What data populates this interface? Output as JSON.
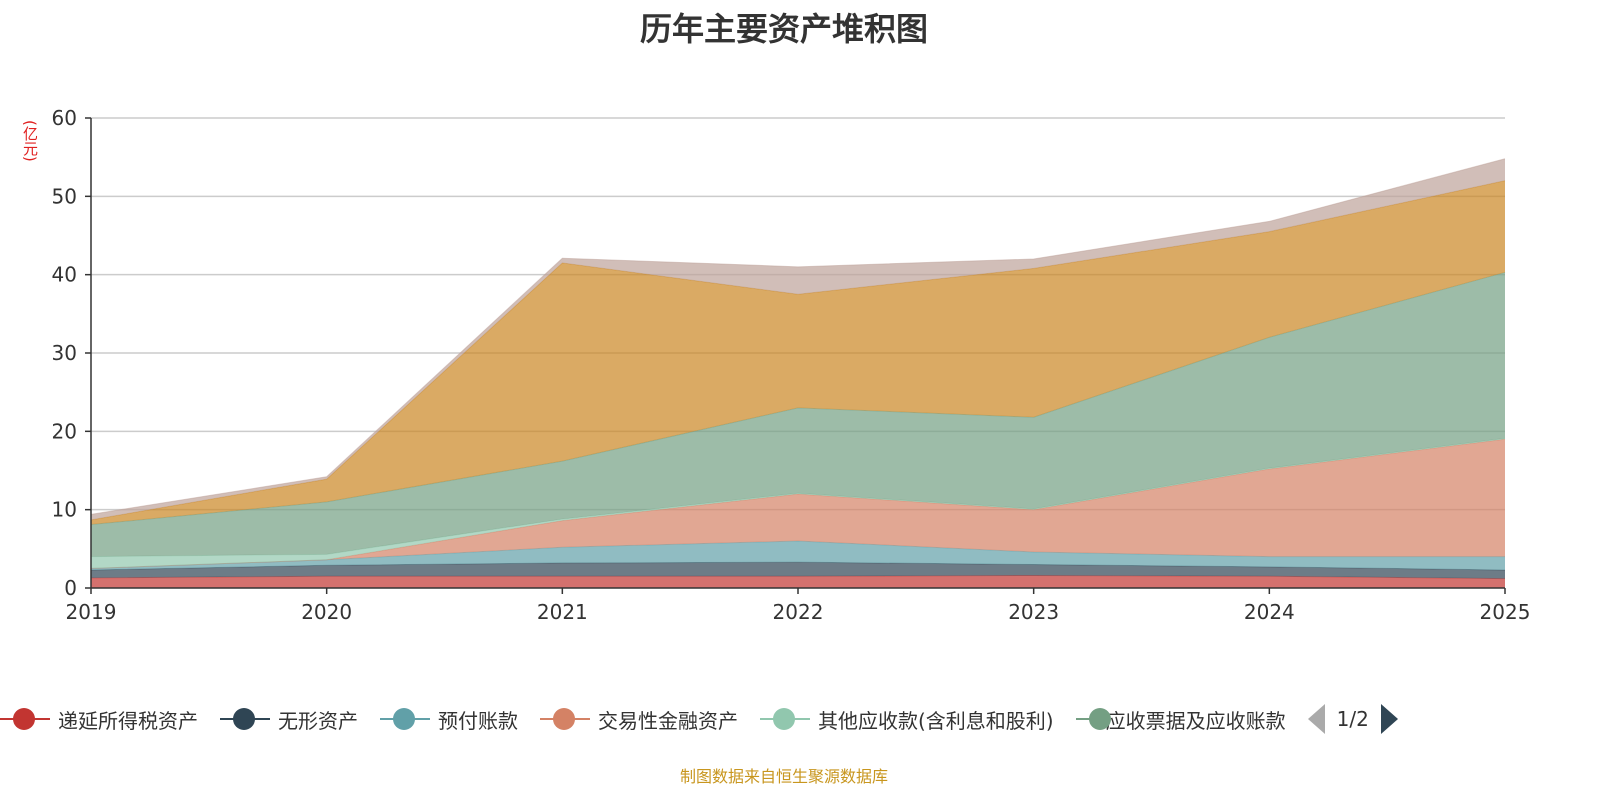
{
  "chart_data": {
    "type": "area",
    "stacked": true,
    "title": "历年主要资产堆积图",
    "ylabel": "(亿元)",
    "xlabel": "",
    "x": [
      "2019",
      "2020",
      "2021",
      "2022",
      "2023",
      "2024",
      "2025"
    ],
    "ylim": [
      0,
      60
    ],
    "yticks": [
      "0",
      "10",
      "20",
      "30",
      "40",
      "50",
      "60"
    ],
    "grid": true,
    "legend_position": "bottom",
    "legend_page": "1/2",
    "series": [
      {
        "name": "递延所得税资产",
        "color": "#c23531",
        "values": [
          1.3,
          1.5,
          1.5,
          1.5,
          1.6,
          1.5,
          1.2
        ]
      },
      {
        "name": "无形资产",
        "color": "#2f4554",
        "values": [
          1.0,
          1.4,
          1.7,
          1.8,
          1.4,
          1.2,
          1.1
        ]
      },
      {
        "name": "预付账款",
        "color": "#61a0a8",
        "values": [
          0.2,
          0.7,
          2.0,
          2.7,
          1.6,
          1.3,
          1.7
        ]
      },
      {
        "name": "交易性金融资产",
        "color": "#d48265",
        "values": [
          0,
          0,
          3.4,
          6.0,
          5.4,
          11.2,
          15.0
        ]
      },
      {
        "name": "其他应收款(含利息和股利)",
        "color": "#91c7ae",
        "values": [
          1.5,
          0.7,
          0.2,
          0.1,
          0.1,
          0.1,
          0.1
        ]
      },
      {
        "name": "应收票据及应收账款",
        "color": "#749f83",
        "values": [
          4.1,
          6.7,
          7.4,
          10.9,
          11.7,
          16.7,
          21.2
        ]
      },
      {
        "name": "",
        "color": "#ca8622",
        "values": [
          0.6,
          2.9,
          25.3,
          14.5,
          19.0,
          13.5,
          11.7
        ]
      },
      {
        "name": "",
        "color": "#bda29a",
        "values": [
          0.7,
          0.3,
          0.6,
          3.5,
          1.2,
          1.3,
          2.8
        ]
      }
    ]
  },
  "footer": {
    "source": "制图数据来自恒生聚源数据库"
  }
}
